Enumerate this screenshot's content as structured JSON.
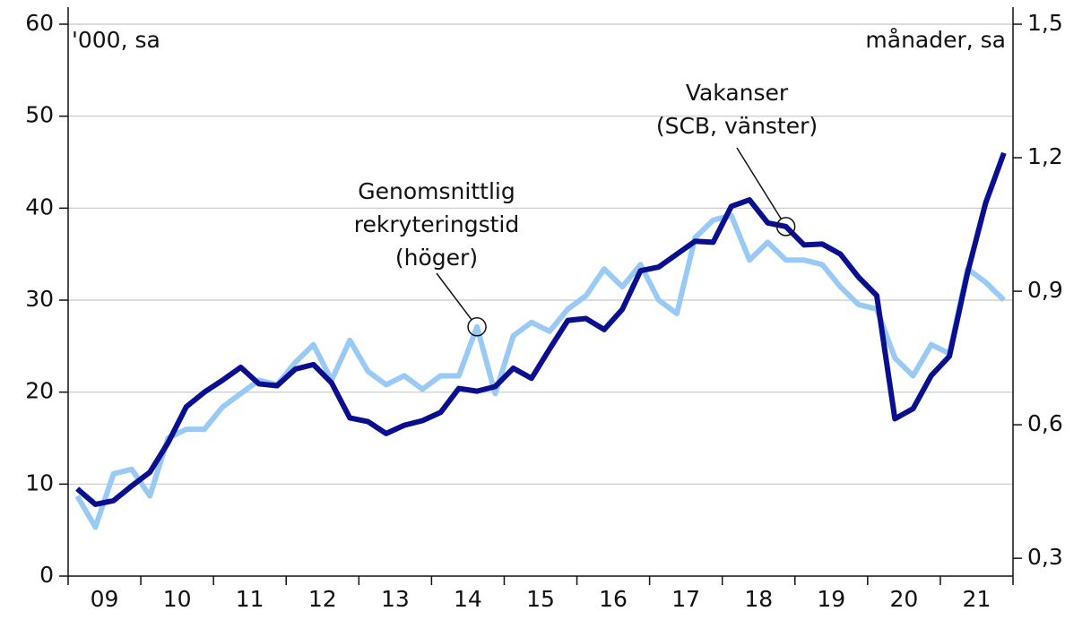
{
  "chart_data": {
    "type": "line",
    "y_label": "'000, sa",
    "y2_label": "månader, sa",
    "categories": [
      null,
      "09",
      null,
      null,
      null,
      "10",
      null,
      null,
      null,
      "11",
      null,
      null,
      null,
      "12",
      null,
      null,
      null,
      "13",
      null,
      null,
      null,
      "14",
      null,
      null,
      null,
      "15",
      null,
      null,
      null,
      "16",
      null,
      null,
      null,
      "17",
      null,
      null,
      null,
      "18",
      null,
      null,
      null,
      "19",
      null,
      null,
      null,
      "20",
      null,
      null,
      null,
      "21",
      null,
      null
    ],
    "series": [
      {
        "name": "Vakanser (SCB, vänster)",
        "color": "#0a0f8f",
        "values": [
          9.5,
          7.8,
          8.2,
          9.8,
          11.3,
          14.5,
          18.4,
          20.0,
          21.3,
          22.7,
          20.9,
          20.7,
          22.5,
          23.0,
          21.0,
          17.2,
          16.8,
          15.5,
          16.4,
          16.9,
          17.8,
          20.4,
          20.1,
          20.6,
          22.6,
          21.5,
          24.7,
          27.8,
          28.0,
          26.8,
          29.0,
          33.2,
          33.6,
          35.0,
          36.4,
          36.3,
          40.2,
          40.9,
          38.4,
          38.0,
          36.0,
          36.1,
          35.0,
          32.5,
          30.5,
          17.1,
          18.2,
          21.8,
          23.9,
          33.0,
          40.6,
          46.0
        ]
      },
      {
        "name": "Genomsnittlig rekryteringstid (höger)",
        "color": "#99c9f5",
        "axis": "y2",
        "values": [
          0.44,
          0.37,
          0.49,
          0.5,
          0.44,
          0.57,
          0.59,
          0.59,
          0.64,
          0.67,
          0.7,
          0.69,
          0.74,
          0.78,
          0.7,
          0.79,
          0.72,
          0.69,
          0.71,
          0.68,
          0.71,
          0.71,
          0.82,
          0.67,
          0.8,
          0.83,
          0.81,
          0.86,
          0.89,
          0.95,
          0.91,
          0.96,
          0.88,
          0.85,
          1.02,
          1.06,
          1.07,
          0.97,
          1.01,
          0.97,
          0.97,
          0.96,
          0.91,
          0.87,
          0.86,
          0.75,
          0.71,
          0.78,
          0.76,
          0.95,
          0.92,
          0.88
        ]
      }
    ],
    "annotations": [
      {
        "lines": [
          "Genomsnittlig",
          "rekryteringstid",
          "(höger)"
        ],
        "series": 1,
        "index": 22
      },
      {
        "lines": [
          "Vakanser",
          "(SCB, vänster)"
        ],
        "series": 0,
        "index": 39
      }
    ],
    "ylim": [
      0,
      60
    ],
    "yticks": [
      0,
      10,
      20,
      30,
      40,
      50,
      60
    ],
    "y2lim": [
      0.26,
      1.5
    ],
    "y2ticks": [
      {
        "value": 0.3,
        "label": "0,3"
      },
      {
        "value": 0.6,
        "label": "0,6"
      },
      {
        "value": 0.9,
        "label": "0,9"
      },
      {
        "value": 1.2,
        "label": "1,2"
      },
      {
        "value": 1.5,
        "label": "1,5"
      }
    ],
    "grid": true
  }
}
